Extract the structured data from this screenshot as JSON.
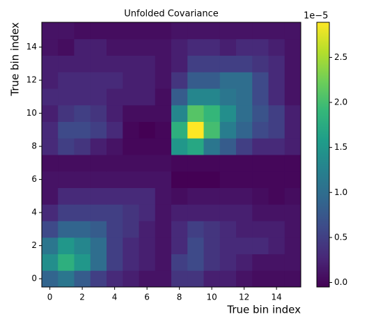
{
  "chart_data": {
    "type": "heatmap",
    "title": "Unfolded Covariance",
    "x_label": "True bin index",
    "y_label": "True bin index",
    "colorbar_offset": "1e−5",
    "colormap": "viridis",
    "xlim": [
      -0.5,
      15.5
    ],
    "ylim": [
      -0.5,
      15.5
    ],
    "xticks": [
      0,
      2,
      4,
      6,
      8,
      10,
      12,
      14
    ],
    "yticks": [
      0,
      2,
      4,
      6,
      8,
      10,
      12,
      14
    ],
    "clim": [
      -0.05,
      2.89
    ],
    "cticks": [
      {
        "value": 0,
        "label": "0.0"
      },
      0.5,
      {
        "value": 1,
        "label": "1.0"
      },
      1.5,
      {
        "value": 2,
        "label": "2.0"
      },
      2.5
    ],
    "z": [
      [
        0.9,
        1.1,
        0.8,
        0.5,
        0.3,
        0.2,
        0.1,
        0.1,
        0.4,
        0.4,
        0.2,
        0.2,
        0.1,
        0.05,
        0.05,
        0.05
      ],
      [
        1.4,
        1.8,
        1.5,
        1.0,
        0.5,
        0.3,
        0.2,
        0.1,
        0.5,
        0.6,
        0.4,
        0.3,
        0.2,
        0.1,
        0.1,
        0.1
      ],
      [
        1.1,
        1.5,
        1.3,
        1.0,
        0.5,
        0.3,
        0.2,
        0.1,
        0.3,
        0.6,
        0.4,
        0.3,
        0.3,
        0.3,
        0.2,
        0.1
      ],
      [
        0.6,
        0.9,
        0.9,
        0.8,
        0.5,
        0.4,
        0.2,
        0.1,
        0.3,
        0.5,
        0.4,
        0.3,
        0.2,
        0.2,
        0.2,
        0.1
      ],
      [
        0.3,
        0.5,
        0.5,
        0.5,
        0.5,
        0.4,
        0.3,
        0.1,
        0.2,
        0.2,
        0.2,
        0.2,
        0.2,
        0.1,
        0.1,
        0.1
      ],
      [
        0.1,
        0.3,
        0.3,
        0.3,
        0.3,
        0.3,
        0.3,
        0.1,
        0.05,
        0.1,
        0.1,
        0.1,
        0.1,
        0.05,
        0.0,
        0.05
      ],
      [
        0.1,
        0.1,
        0.1,
        0.1,
        0.1,
        0.1,
        0.1,
        0.1,
        -0.05,
        -0.05,
        -0.05,
        0.0,
        0.0,
        0.0,
        0.0,
        0.0
      ],
      [
        0.05,
        0.05,
        0.05,
        0.05,
        0.05,
        0.05,
        0.05,
        0.05,
        0.0,
        0.0,
        0.0,
        0.0,
        0.0,
        0.0,
        0.0,
        0.0
      ],
      [
        0.3,
        0.5,
        0.4,
        0.2,
        0.1,
        0.0,
        0.0,
        0.0,
        1.5,
        1.7,
        1.1,
        0.8,
        0.5,
        0.3,
        0.3,
        0.2
      ],
      [
        0.3,
        0.6,
        0.6,
        0.5,
        0.3,
        0.0,
        -0.05,
        0.0,
        1.8,
        2.89,
        2.0,
        1.2,
        0.9,
        0.6,
        0.5,
        0.2
      ],
      [
        0.2,
        0.4,
        0.5,
        0.4,
        0.2,
        0.05,
        0.05,
        0.05,
        1.3,
        2.1,
        1.9,
        1.4,
        1.0,
        0.7,
        0.5,
        0.2
      ],
      [
        0.3,
        0.3,
        0.3,
        0.3,
        0.2,
        0.2,
        0.2,
        0.05,
        0.8,
        1.3,
        1.3,
        1.1,
        1.0,
        0.6,
        0.3,
        0.1
      ],
      [
        0.2,
        0.3,
        0.3,
        0.3,
        0.3,
        0.2,
        0.2,
        0.1,
        0.4,
        0.8,
        0.8,
        1.0,
        1.0,
        0.6,
        0.3,
        0.1
      ],
      [
        0.2,
        0.2,
        0.2,
        0.2,
        0.2,
        0.2,
        0.2,
        0.1,
        0.2,
        0.5,
        0.5,
        0.5,
        0.5,
        0.4,
        0.3,
        0.1
      ],
      [
        0.1,
        0.05,
        0.2,
        0.2,
        0.1,
        0.1,
        0.1,
        0.1,
        0.2,
        0.3,
        0.3,
        0.2,
        0.3,
        0.3,
        0.2,
        0.1
      ],
      [
        0.1,
        0.1,
        0.05,
        0.05,
        0.05,
        0.05,
        0.05,
        0.05,
        0.1,
        0.1,
        0.1,
        0.1,
        0.1,
        0.1,
        0.1,
        0.1
      ]
    ]
  }
}
